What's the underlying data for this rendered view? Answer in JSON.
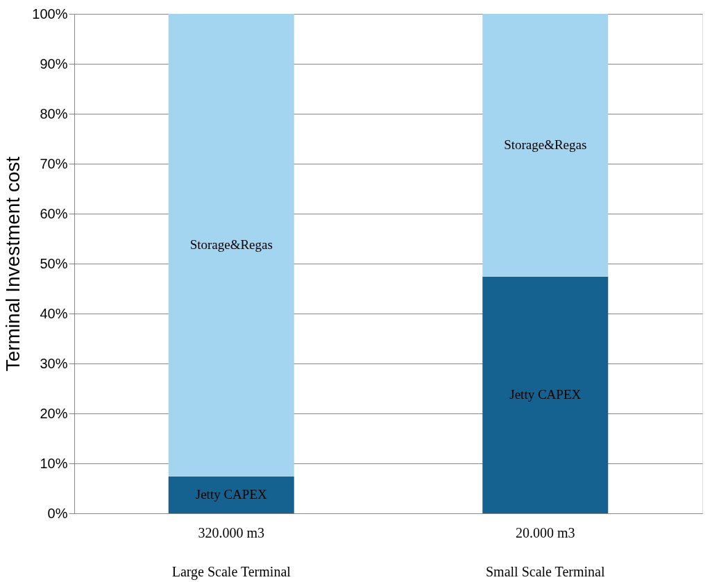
{
  "chart_data": {
    "type": "bar",
    "stacked": true,
    "ylabel": "Terminal Investment cost",
    "categories": [
      "320.000 m3",
      "20.000 m3"
    ],
    "series": [
      {
        "name": "Jetty CAPEX",
        "color": "#156291",
        "values": [
          7.4,
          47.4
        ]
      },
      {
        "name": "Storage&Regas",
        "color": "#a3d5f0",
        "values": [
          92.6,
          52.6
        ]
      }
    ],
    "annotations": [
      "Large Scale Terminal",
      "Small Scale Terminal"
    ],
    "ylim": [
      0,
      100
    ],
    "yticks": [
      {
        "value": 0,
        "label": "0%"
      },
      {
        "value": 10,
        "label": "10%"
      },
      {
        "value": 20,
        "label": "20%"
      },
      {
        "value": 30,
        "label": "30%"
      },
      {
        "value": 40,
        "label": "40%"
      },
      {
        "value": 50,
        "label": "50%"
      },
      {
        "value": 60,
        "label": "60%"
      },
      {
        "value": 70,
        "label": "70%"
      },
      {
        "value": 80,
        "label": "80%"
      },
      {
        "value": 90,
        "label": "90%"
      },
      {
        "value": 100,
        "label": "100%"
      }
    ],
    "grid": "y",
    "legend": false
  }
}
